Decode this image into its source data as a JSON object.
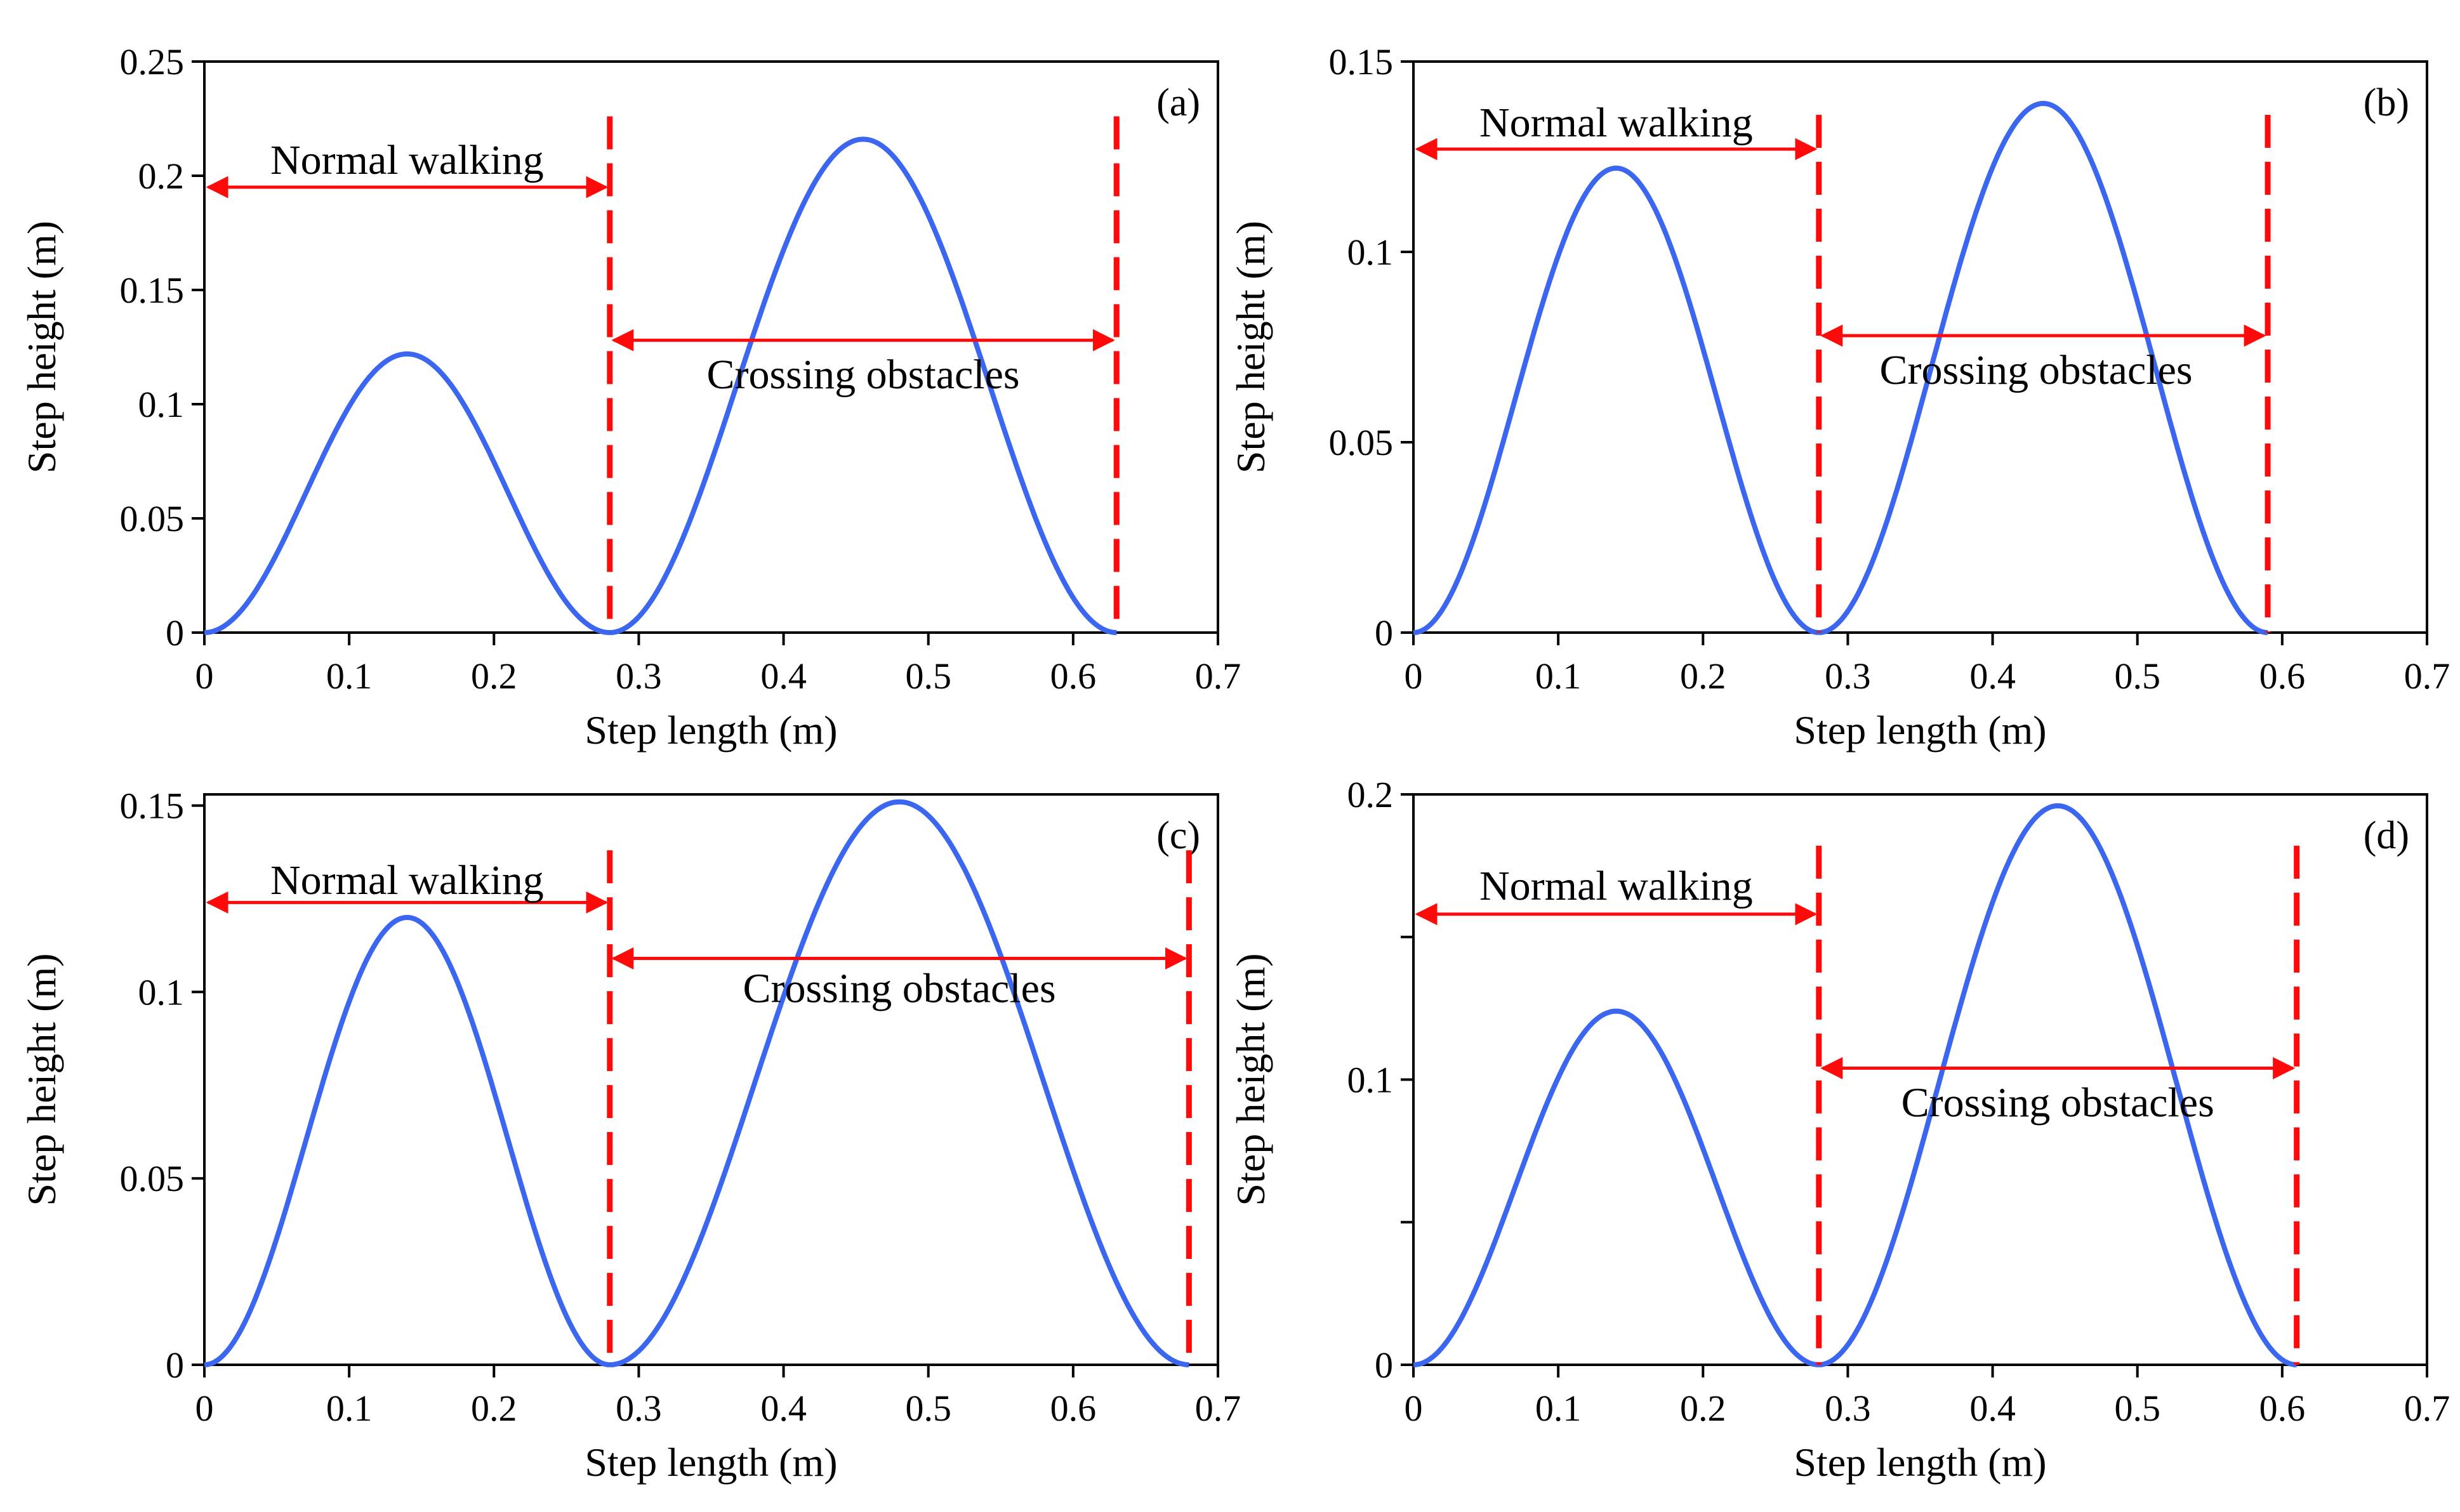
{
  "chart_data": [
    {
      "type": "line",
      "panel_label": "(a)",
      "xlabel": "Step length (m)",
      "ylabel": "Step height (m)",
      "xlim": [
        0,
        0.7
      ],
      "ylim": [
        0,
        0.25
      ],
      "xticks": [
        "0",
        "0.1",
        "0.2",
        "0.3",
        "0.4",
        "0.5",
        "0.6",
        "0.7"
      ],
      "yticks": [
        {
          "value": 0,
          "label": "0"
        },
        {
          "value": 0.05,
          "label": "0.05"
        },
        {
          "value": 0.1,
          "label": "0.1"
        },
        {
          "value": 0.15,
          "label": "0.15"
        },
        {
          "value": 0.2,
          "label": "0.2"
        },
        {
          "value": 0.25,
          "label": "0.25"
        }
      ],
      "series": [
        {
          "name": "Normal walking step",
          "x_start": 0,
          "x_end": 0.28,
          "peak": 0.122
        },
        {
          "name": "Crossing obstacles step",
          "x_start": 0.28,
          "x_end": 0.63,
          "peak": 0.216
        }
      ],
      "boundaries": [
        0.28,
        0.63
      ],
      "boundary_top": 0.226,
      "annotations": [
        {
          "text": "Normal walking",
          "arrow_from": 0,
          "arrow_to": 0.28,
          "arrow_y": 0.195,
          "text_x": 0.14,
          "text_y": 0.207
        },
        {
          "text": "Crossing obstacles",
          "arrow_from": 0.28,
          "arrow_to": 0.63,
          "arrow_y": 0.128,
          "text_x": 0.455,
          "text_y": 0.113
        }
      ]
    },
    {
      "type": "line",
      "panel_label": "(b)",
      "xlabel": "Step length (m)",
      "ylabel": "Step height (m)",
      "xlim": [
        0,
        0.7
      ],
      "ylim": [
        0,
        0.15
      ],
      "xticks": [
        "0",
        "0.1",
        "0.2",
        "0.3",
        "0.4",
        "0.5",
        "0.6",
        "0.7"
      ],
      "yticks": [
        {
          "value": 0,
          "label": "0"
        },
        {
          "value": 0.05,
          "label": "0.05"
        },
        {
          "value": 0.1,
          "label": "0.1"
        },
        {
          "value": 0.15,
          "label": "0.15"
        }
      ],
      "series": [
        {
          "name": "Normal walking step",
          "x_start": 0,
          "x_end": 0.28,
          "peak": 0.122
        },
        {
          "name": "Crossing obstacles step",
          "x_start": 0.28,
          "x_end": 0.59,
          "peak": 0.139
        }
      ],
      "boundaries": [
        0.28,
        0.59
      ],
      "boundary_top": 0.136,
      "annotations": [
        {
          "text": "Normal walking",
          "arrow_from": 0,
          "arrow_to": 0.28,
          "arrow_y": 0.127,
          "text_x": 0.14,
          "text_y": 0.134
        },
        {
          "text": "Crossing obstacles",
          "arrow_from": 0.28,
          "arrow_to": 0.59,
          "arrow_y": 0.078,
          "text_x": 0.43,
          "text_y": 0.069
        }
      ]
    },
    {
      "type": "line",
      "panel_label": "(c)",
      "xlabel": "Step length (m)",
      "ylabel": "Step height (m)",
      "xlim": [
        0,
        0.7
      ],
      "ylim": [
        0,
        0.153
      ],
      "xticks": [
        "0",
        "0.1",
        "0.2",
        "0.3",
        "0.4",
        "0.5",
        "0.6",
        "0.7"
      ],
      "yticks": [
        {
          "value": 0,
          "label": "0"
        },
        {
          "value": 0.05,
          "label": "0.05"
        },
        {
          "value": 0.1,
          "label": "0.1"
        },
        {
          "value": 0.15,
          "label": "0.15"
        }
      ],
      "series": [
        {
          "name": "Normal walking step",
          "x_start": 0,
          "x_end": 0.28,
          "peak": 0.12
        },
        {
          "name": "Crossing obstacles step",
          "x_start": 0.28,
          "x_end": 0.68,
          "peak": 0.151
        }
      ],
      "boundaries": [
        0.28,
        0.68
      ],
      "boundary_top": 0.138,
      "annotations": [
        {
          "text": "Normal walking",
          "arrow_from": 0,
          "arrow_to": 0.28,
          "arrow_y": 0.124,
          "text_x": 0.14,
          "text_y": 0.13
        },
        {
          "text": "Crossing obstacles",
          "arrow_from": 0.28,
          "arrow_to": 0.68,
          "arrow_y": 0.109,
          "text_x": 0.48,
          "text_y": 0.101
        }
      ]
    },
    {
      "type": "line",
      "panel_label": "(d)",
      "xlabel": "Step length (m)",
      "ylabel": "Step height (m)",
      "xlim": [
        0,
        0.7
      ],
      "ylim": [
        0,
        0.2
      ],
      "xticks": [
        "0",
        "0.1",
        "0.2",
        "0.3",
        "0.4",
        "0.5",
        "0.6",
        "0.7"
      ],
      "yticks": [
        {
          "value": 0,
          "label": "0"
        },
        {
          "value": 0.05,
          "label": ""
        },
        {
          "value": 0.1,
          "label": "0.1"
        },
        {
          "value": 0.15,
          "label": ""
        },
        {
          "value": 0.2,
          "label": "0.2"
        }
      ],
      "series": [
        {
          "name": "Normal walking step",
          "x_start": 0,
          "x_end": 0.28,
          "peak": 0.124
        },
        {
          "name": "Crossing obstacles step",
          "x_start": 0.28,
          "x_end": 0.61,
          "peak": 0.196
        }
      ],
      "boundaries": [
        0.28,
        0.61
      ],
      "boundary_top": 0.182,
      "annotations": [
        {
          "text": "Normal walking",
          "arrow_from": 0,
          "arrow_to": 0.28,
          "arrow_y": 0.158,
          "text_x": 0.14,
          "text_y": 0.168
        },
        {
          "text": "Crossing obstacles",
          "arrow_from": 0.28,
          "arrow_to": 0.61,
          "arrow_y": 0.104,
          "text_x": 0.445,
          "text_y": 0.092
        }
      ]
    }
  ],
  "colors": {
    "curve": "#3b66f0",
    "boundary": "#ff0a0a",
    "arrow": "#ff0a0a",
    "axis": "#000000"
  }
}
